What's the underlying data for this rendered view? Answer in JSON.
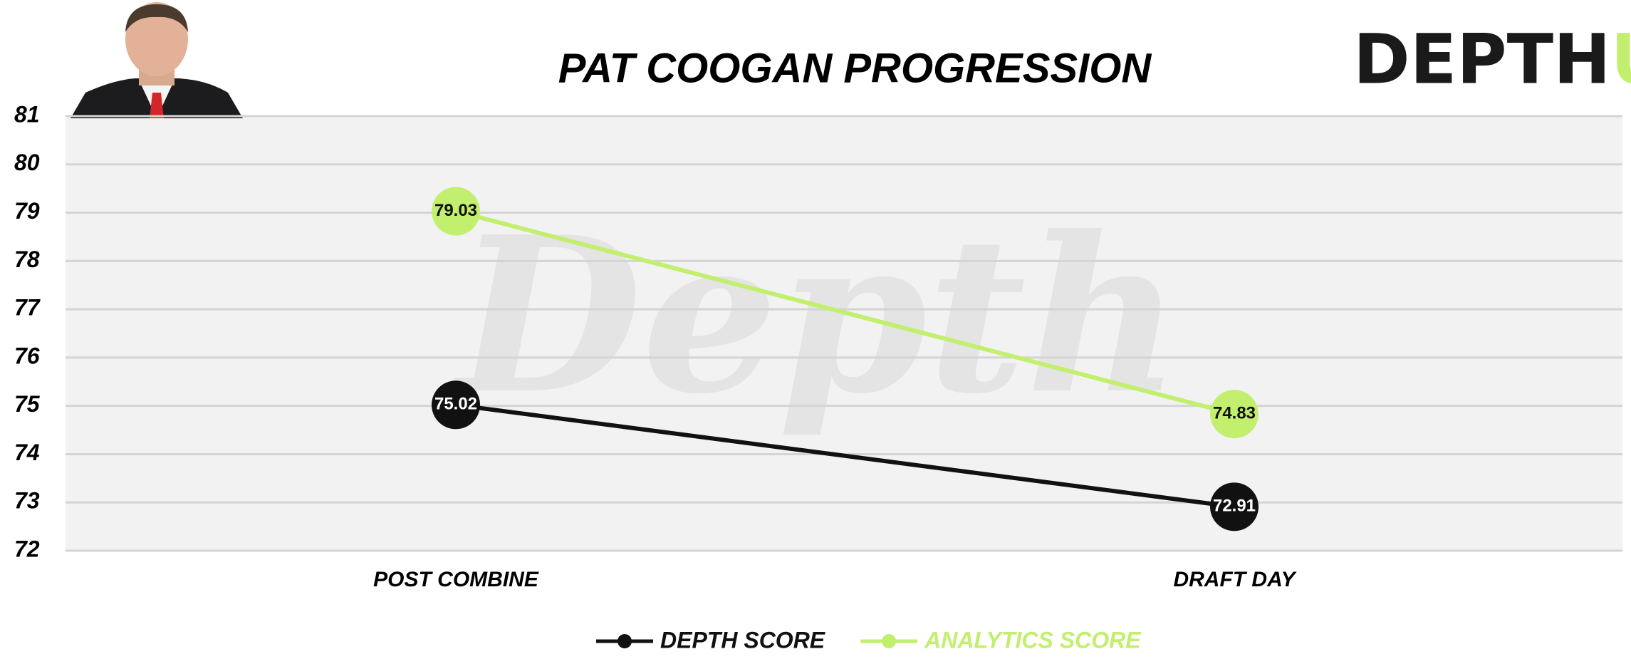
{
  "chart_data": {
    "type": "line",
    "title": "PAT COOGAN PROGRESSION",
    "categories": [
      "POST COMBINE",
      "DRAFT DAY"
    ],
    "series": [
      {
        "name": "DEPTH SCORE",
        "color": "#111111",
        "label_color": "#ffffff",
        "values": [
          75.02,
          72.91
        ]
      },
      {
        "name": "ANALYTICS SCORE",
        "color": "#c2ef6e",
        "label_color": "#111111",
        "values": [
          79.03,
          74.83
        ]
      }
    ],
    "ylim": [
      72,
      81
    ],
    "yticks": [
      72,
      73,
      74,
      75,
      76,
      77,
      78,
      79,
      80,
      81
    ],
    "grid": true,
    "legend": "bottom"
  },
  "logo": {
    "text": "DEPTH",
    "accent": "U"
  },
  "watermark": "Depth"
}
